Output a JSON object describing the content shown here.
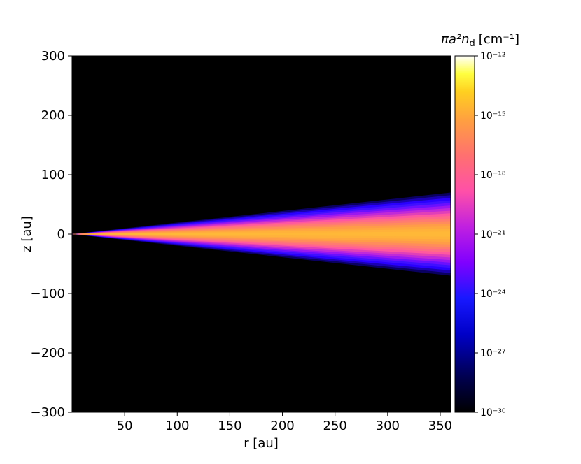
{
  "chart_data": {
    "type": "heatmap",
    "title": "",
    "xlabel": "r [au]",
    "ylabel": "z [au]",
    "xlim": [
      0,
      360
    ],
    "ylim": [
      -300,
      300
    ],
    "xticks": [
      50,
      100,
      150,
      200,
      250,
      300,
      350
    ],
    "yticks": [
      300,
      200,
      100,
      0,
      -100,
      -200,
      -300
    ],
    "xtick_labels": [
      "50",
      "100",
      "150",
      "200",
      "250",
      "300",
      "350"
    ],
    "ytick_labels": [
      "300",
      "200",
      "100",
      "0",
      "−100",
      "−200",
      "−300"
    ],
    "colorbar": {
      "label": "πa²n",
      "label_subscript": "d",
      "label_units": "[cm⁻¹]",
      "scale": "log",
      "colormap": "gnuplot2",
      "range": [
        1e-30,
        1e-12
      ],
      "ticks": [
        -12,
        -15,
        -18,
        -21,
        -24,
        -27,
        -30
      ],
      "tick_labels": [
        "10⁻¹²",
        "10⁻¹⁵",
        "10⁻¹⁸",
        "10⁻²¹",
        "10⁻²⁴",
        "10⁻²⁷",
        "10⁻³⁰"
      ]
    },
    "disk": {
      "apex_r": 0,
      "visible_half_height_at_r360": 70,
      "midplane_peak_log10": -15
    },
    "background_color": "#000000"
  }
}
